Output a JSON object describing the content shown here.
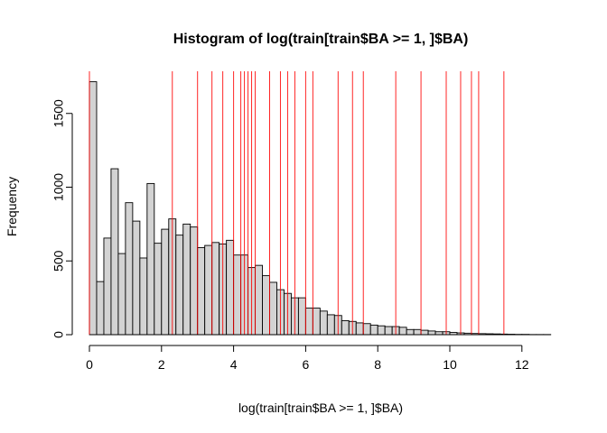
{
  "chart_data": {
    "type": "bar",
    "title": "Histogram of log(train[train$BA >= 1, ]$BA)",
    "xlabel": "log(train[train$BA >= 1, ]$BA)",
    "ylabel": "Frequency",
    "xlim": [
      0,
      12.8
    ],
    "ylim": [
      0,
      1780
    ],
    "x_ticks": [
      0,
      2,
      4,
      6,
      8,
      10,
      12
    ],
    "y_ticks": [
      0,
      500,
      1000,
      1500
    ],
    "bin_width": 0.2,
    "bin_starts": [
      0.0,
      0.2,
      0.4,
      0.6,
      0.8,
      1.0,
      1.2,
      1.4,
      1.6,
      1.8,
      2.0,
      2.2,
      2.4,
      2.6,
      2.8,
      3.0,
      3.2,
      3.4,
      3.6,
      3.8,
      4.0,
      4.2,
      4.4,
      4.6,
      4.8,
      5.0,
      5.2,
      5.4,
      5.6,
      5.8,
      6.0,
      6.2,
      6.4,
      6.6,
      6.8,
      7.0,
      7.2,
      7.4,
      7.6,
      7.8,
      8.0,
      8.2,
      8.4,
      8.6,
      8.8,
      9.0,
      9.2,
      9.4,
      9.6,
      9.8,
      10.0,
      10.2,
      10.4,
      10.6,
      10.8,
      11.0,
      11.2,
      11.4,
      11.6,
      11.8,
      12.0,
      12.2,
      12.4,
      12.6
    ],
    "values": [
      1715,
      360,
      655,
      1125,
      550,
      895,
      770,
      520,
      1025,
      620,
      715,
      785,
      675,
      750,
      730,
      590,
      605,
      625,
      615,
      640,
      540,
      540,
      455,
      470,
      400,
      355,
      305,
      280,
      250,
      250,
      180,
      180,
      160,
      135,
      130,
      95,
      90,
      80,
      75,
      65,
      60,
      55,
      55,
      50,
      35,
      35,
      30,
      25,
      20,
      20,
      15,
      12,
      10,
      8,
      7,
      6,
      5,
      4,
      3,
      2,
      2,
      1,
      1,
      1
    ],
    "reference_lines": {
      "color": "#ff0000",
      "x": [
        0.0,
        2.3,
        3.0,
        3.4,
        3.7,
        4.0,
        4.2,
        4.3,
        4.4,
        4.5,
        4.6,
        5.0,
        5.3,
        5.5,
        5.7,
        6.0,
        6.2,
        6.9,
        7.3,
        7.6,
        8.5,
        9.2,
        9.9,
        10.3,
        10.6,
        10.8,
        11.5
      ]
    },
    "bar_fill": "#d3d3d3",
    "grid": false,
    "legend": "none"
  }
}
